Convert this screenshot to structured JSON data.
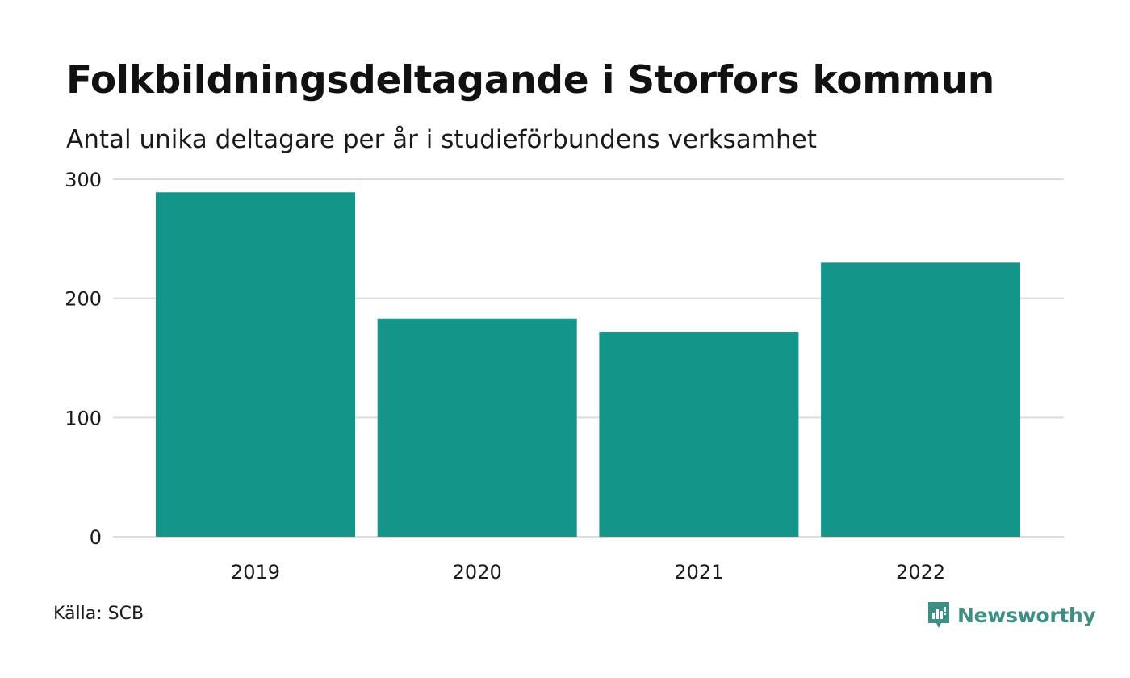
{
  "chart_data": {
    "type": "bar",
    "title": "Folkbildningsdeltagande i Storfors kommun",
    "subtitle": "Antal unika deltagare per år i studieförbundens verksamhet",
    "categories": [
      "2019",
      "2020",
      "2021",
      "2022"
    ],
    "values": [
      289,
      183,
      172,
      230
    ],
    "ylim": [
      0,
      300
    ],
    "yticks": [
      0,
      100,
      200,
      300
    ],
    "xlabel": "",
    "ylabel": "",
    "grid": true,
    "bar_color": "#14958a"
  },
  "footer": {
    "source": "Källa: SCB",
    "brand": "Newsworthy"
  },
  "colors": {
    "brand": "#3d8f83",
    "grid": "#dddddd"
  },
  "icons": {
    "brand_logo": "newsworthy-logo-icon"
  }
}
